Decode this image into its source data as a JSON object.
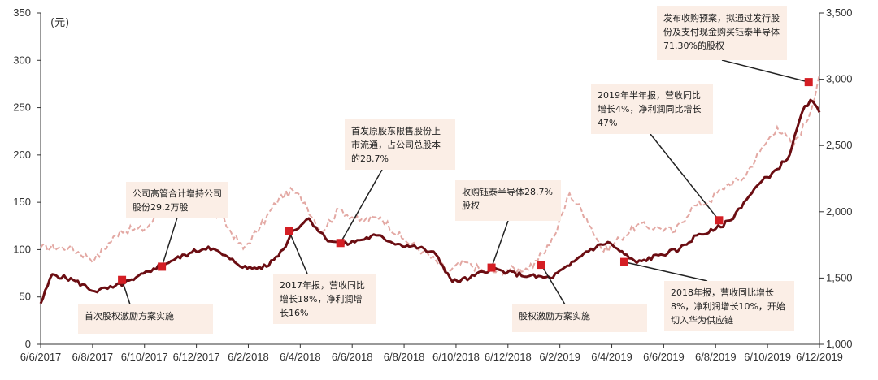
{
  "chart_data": {
    "type": "line",
    "unit_left": "(元)",
    "x_ticks": [
      "6/6/2017",
      "6/8/2017",
      "6/10/2017",
      "6/12/2017",
      "6/2/2018",
      "6/4/2018",
      "6/6/2018",
      "6/8/2018",
      "6/10/2018",
      "6/12/2018",
      "6/2/2019",
      "6/4/2019",
      "6/6/2019",
      "6/8/2019",
      "6/10/2019",
      "6/12/2019"
    ],
    "y_left": {
      "min": 0,
      "max": 350,
      "ticks": [
        "0",
        "50",
        "100",
        "150",
        "200",
        "250",
        "300",
        "350"
      ]
    },
    "y_right": {
      "min": 1000,
      "max": 3500,
      "ticks": [
        "1,000",
        "1,500",
        "2,000",
        "2,500",
        "3,000",
        "3,500"
      ]
    },
    "colors": {
      "stock": "#6b0d12",
      "index": "#e3a8a3",
      "marker": "#d41e24",
      "annotation_bg": "#fbeee6"
    },
    "series": [
      {
        "axis": "left",
        "style": "solid",
        "x": [
          "2017-06-06",
          "2017-06-20",
          "2017-07-15",
          "2017-08-10",
          "2017-09-01",
          "2017-09-26",
          "2017-10-20",
          "2017-11-10",
          "2017-12-05",
          "2017-12-25",
          "2018-01-20",
          "2018-02-10",
          "2018-03-05",
          "2018-03-25",
          "2018-04-06",
          "2018-04-25",
          "2018-05-15",
          "2018-06-05",
          "2018-06-25",
          "2018-07-15",
          "2018-08-10",
          "2018-09-05",
          "2018-09-25",
          "2018-10-15",
          "2018-11-05",
          "2018-11-30",
          "2018-12-20",
          "2019-01-15",
          "2019-02-10",
          "2019-03-05",
          "2019-03-25",
          "2019-04-20",
          "2019-05-10",
          "2019-05-25",
          "2019-06-20",
          "2019-07-15",
          "2019-08-05",
          "2019-08-25",
          "2019-09-15",
          "2019-10-01",
          "2019-10-20",
          "2019-11-10",
          "2019-11-25",
          "2019-12-10",
          "2019-12-20",
          "2019-12-31"
        ],
        "values": [
          43,
          74,
          68,
          56,
          60,
          68,
          80,
          88,
          97,
          103,
          90,
          80,
          82,
          100,
          120,
          133,
          112,
          105,
          110,
          115,
          106,
          102,
          95,
          66,
          70,
          80,
          76,
          72,
          70,
          83,
          98,
          108,
          95,
          86,
          94,
          100,
          115,
          120,
          131,
          150,
          170,
          185,
          200,
          245,
          258,
          245
        ]
      },
      {
        "axis": "right",
        "style": "dashed",
        "x": [
          "2017-06-06",
          "2017-07-10",
          "2017-08-10",
          "2017-09-10",
          "2017-10-10",
          "2017-11-05",
          "2017-11-25",
          "2017-12-15",
          "2018-01-10",
          "2018-02-05",
          "2018-02-25",
          "2018-03-20",
          "2018-04-06",
          "2018-04-20",
          "2018-05-10",
          "2018-06-01",
          "2018-06-25",
          "2018-07-20",
          "2018-08-15",
          "2018-09-10",
          "2018-10-10",
          "2018-10-30",
          "2018-11-25",
          "2018-12-20",
          "2019-01-20",
          "2019-02-15",
          "2019-03-05",
          "2019-03-25",
          "2019-04-15",
          "2019-05-05",
          "2019-05-25",
          "2019-06-20",
          "2019-07-10",
          "2019-07-30",
          "2019-08-20",
          "2019-09-10",
          "2019-09-30",
          "2019-10-20",
          "2019-11-10",
          "2019-11-30",
          "2019-12-20",
          "2019-12-31"
        ],
        "values": [
          1730,
          1730,
          1640,
          1860,
          1870,
          2050,
          2100,
          2060,
          1950,
          1720,
          1880,
          2100,
          2160,
          2070,
          1850,
          2020,
          1930,
          1960,
          1800,
          1700,
          1550,
          1620,
          1540,
          1560,
          1580,
          1820,
          2140,
          1960,
          1700,
          1800,
          1900,
          1880,
          1850,
          2030,
          2080,
          2200,
          2250,
          2450,
          2640,
          2500,
          2750,
          3040
        ]
      }
    ],
    "markers": [
      {
        "x": "2017-09-12",
        "y": 68
      },
      {
        "x": "2017-10-30",
        "y": 82
      },
      {
        "x": "2018-04-01",
        "y": 120
      },
      {
        "x": "2018-06-02",
        "y": 107
      },
      {
        "x": "2018-12-01",
        "y": 81
      },
      {
        "x": "2019-01-30",
        "y": 84
      },
      {
        "x": "2019-05-10",
        "y": 87
      },
      {
        "x": "2019-09-01",
        "y": 131
      },
      {
        "x": "2019-12-18",
        "y": 277
      }
    ],
    "annotations": [
      {
        "text": "发布收购预案，拟通过发行股份及支付现金购买钰泰半导体71.30%的股权",
        "target": "2019-12-18"
      },
      {
        "text": "2019年半年报，营收同比增长4%，净利润同比增长47%",
        "target": "2019-09-01"
      },
      {
        "text": "首发原股东限售股份上市流通，占公司总股本的28.7%",
        "target": "2018-06-02"
      },
      {
        "text": "公司高管合计增持公司股份29.2万股",
        "target": "2017-10-30"
      },
      {
        "text": "收购钰泰半导体28.7%股权",
        "target": "2018-12-01"
      },
      {
        "text": "2017年报，营收同比增长18%，净利润增长16%",
        "target": "2018-04-01"
      },
      {
        "text": "首次股权激励方案实施",
        "target": "2017-09-12"
      },
      {
        "text": "股权激励方案实施",
        "target": "2019-01-30"
      },
      {
        "text": "2018年报，营收同比增长8%，净利润增长10%，开始切入华为供应链",
        "target": "2019-05-10"
      }
    ]
  }
}
